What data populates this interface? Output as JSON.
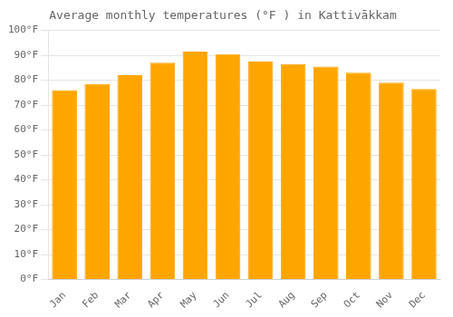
{
  "chart_data": {
    "type": "bar",
    "title": "Average monthly temperatures (°F ) in Kattivākkam",
    "categories": [
      "Jan",
      "Feb",
      "Mar",
      "Apr",
      "May",
      "Jun",
      "Jul",
      "Aug",
      "Sep",
      "Oct",
      "Nov",
      "Dec"
    ],
    "values": [
      76,
      78.5,
      82,
      87,
      91.5,
      90.5,
      87.5,
      86.5,
      85.5,
      83,
      79,
      76.5
    ],
    "color": "#FFA500",
    "ylim": [
      0,
      100
    ],
    "yticks": [
      {
        "value": 0,
        "label": "0°F"
      },
      {
        "value": 10,
        "label": "10°F"
      },
      {
        "value": 20,
        "label": "20°F"
      },
      {
        "value": 30,
        "label": "30°F"
      },
      {
        "value": 40,
        "label": "40°F"
      },
      {
        "value": 50,
        "label": "50°F"
      },
      {
        "value": 60,
        "label": "60°F"
      },
      {
        "value": 70,
        "label": "70°F"
      },
      {
        "value": 80,
        "label": "80°F"
      },
      {
        "value": 90,
        "label": "90°F"
      },
      {
        "value": 100,
        "label": "100°F"
      }
    ],
    "grid": true
  }
}
